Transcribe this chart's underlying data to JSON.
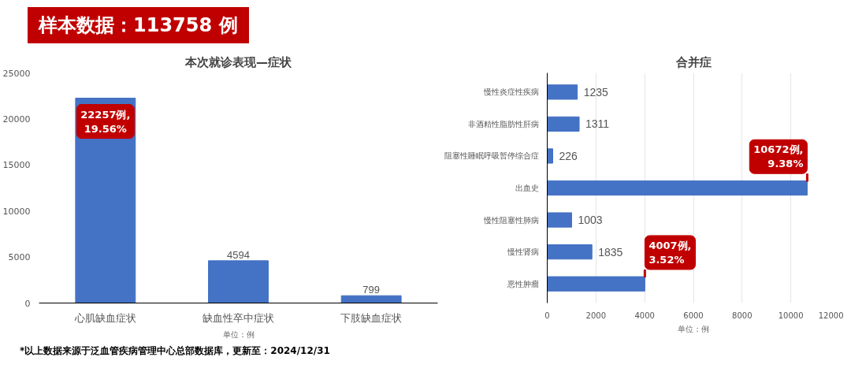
{
  "chart_data": [
    {
      "type": "bar",
      "title": "本次就诊表现—症状",
      "xlabel": "单位：例",
      "categories": [
        "心肌缺血症状",
        "缺血性卒中症状",
        "下肢缺血症状"
      ],
      "values": [
        22257,
        4594,
        799
      ],
      "color": "#4472c4",
      "value_labels": [
        null,
        "4594",
        "799"
      ],
      "ylim": [
        0,
        25000
      ],
      "yticks": [
        0,
        5000,
        10000,
        15000,
        20000,
        25000
      ],
      "grid": false,
      "annotations": [
        "样本数据：113758 例",
        {
          "text": "22257例,\n19.56%",
          "x": "心肌缺血症状",
          "y": 22257
        },
        "*以上数据来源于泛血管疾病管理中心总部数据库，更新至：2024/12/31"
      ]
    },
    {
      "type": "bar",
      "orientation": "horizontal",
      "title": "合并症",
      "xlabel": "单位：例",
      "categories": [
        "慢性炎症性疾病",
        "非酒精性脂肪性肝病",
        "阻塞性睡眠呼吸暂停综合症",
        "出血史",
        "慢性阻塞性肺病",
        "慢性肾病",
        "恶性肿瘤"
      ],
      "values": [
        1235,
        1311,
        226,
        10672,
        1003,
        1835,
        4007
      ],
      "color": "#4472c4",
      "value_labels": [
        "1235",
        "1311",
        "226",
        null,
        "1003",
        "1835",
        null
      ],
      "xlim": [
        0,
        12000
      ],
      "xticks": [
        0,
        2000,
        4000,
        6000,
        8000,
        10000,
        12000
      ],
      "grid": "x",
      "annotations": [
        {
          "text": "10672例,\n9.38%",
          "x": 10672,
          "y": "出血史"
        },
        {
          "text": "4007例,\n3.52%",
          "x": 4007,
          "y": "恶性肿瘤"
        }
      ]
    }
  ]
}
